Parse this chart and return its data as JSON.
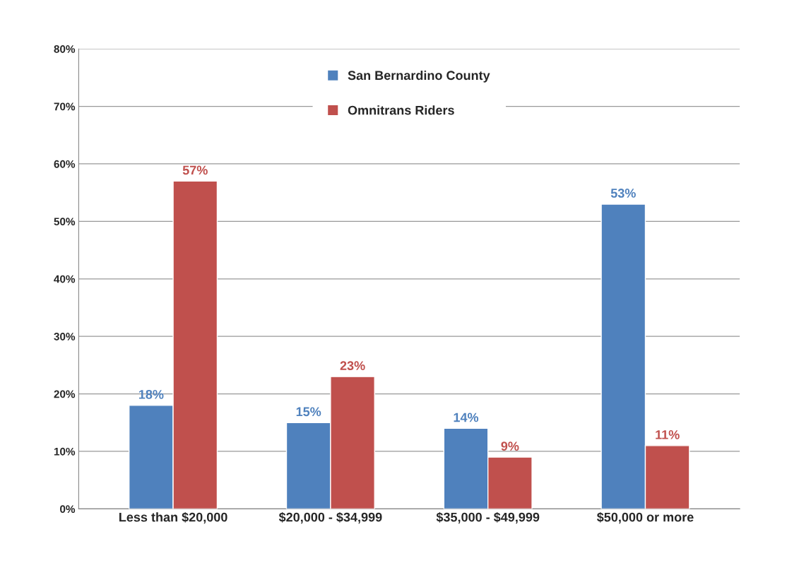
{
  "chart_data": {
    "type": "bar",
    "categories": [
      "Less than $20,000",
      "$20,000 - $34,999",
      "$35,000 - $49,999",
      "$50,000 or more"
    ],
    "series": [
      {
        "name": "San Bernardino County",
        "color": "#4f81bd",
        "values": [
          18,
          15,
          14,
          53
        ],
        "value_labels": [
          "18%",
          "15%",
          "14%",
          "53%"
        ]
      },
      {
        "name": "Omnitrans Riders",
        "color": "#c0504d",
        "values": [
          57,
          23,
          9,
          11
        ],
        "value_labels": [
          "57%",
          "23%",
          "9%",
          "11%"
        ]
      }
    ],
    "ylim": [
      0,
      80
    ],
    "yticks": [
      {
        "value": 0,
        "label": "0%"
      },
      {
        "value": 10,
        "label": "10%"
      },
      {
        "value": 20,
        "label": "20%"
      },
      {
        "value": 30,
        "label": "30%"
      },
      {
        "value": 40,
        "label": "40%"
      },
      {
        "value": 50,
        "label": "50%"
      },
      {
        "value": 60,
        "label": "60%"
      },
      {
        "value": 70,
        "label": "70%"
      },
      {
        "value": 80,
        "label": "80%"
      }
    ],
    "grid": "y",
    "legend": "top"
  }
}
